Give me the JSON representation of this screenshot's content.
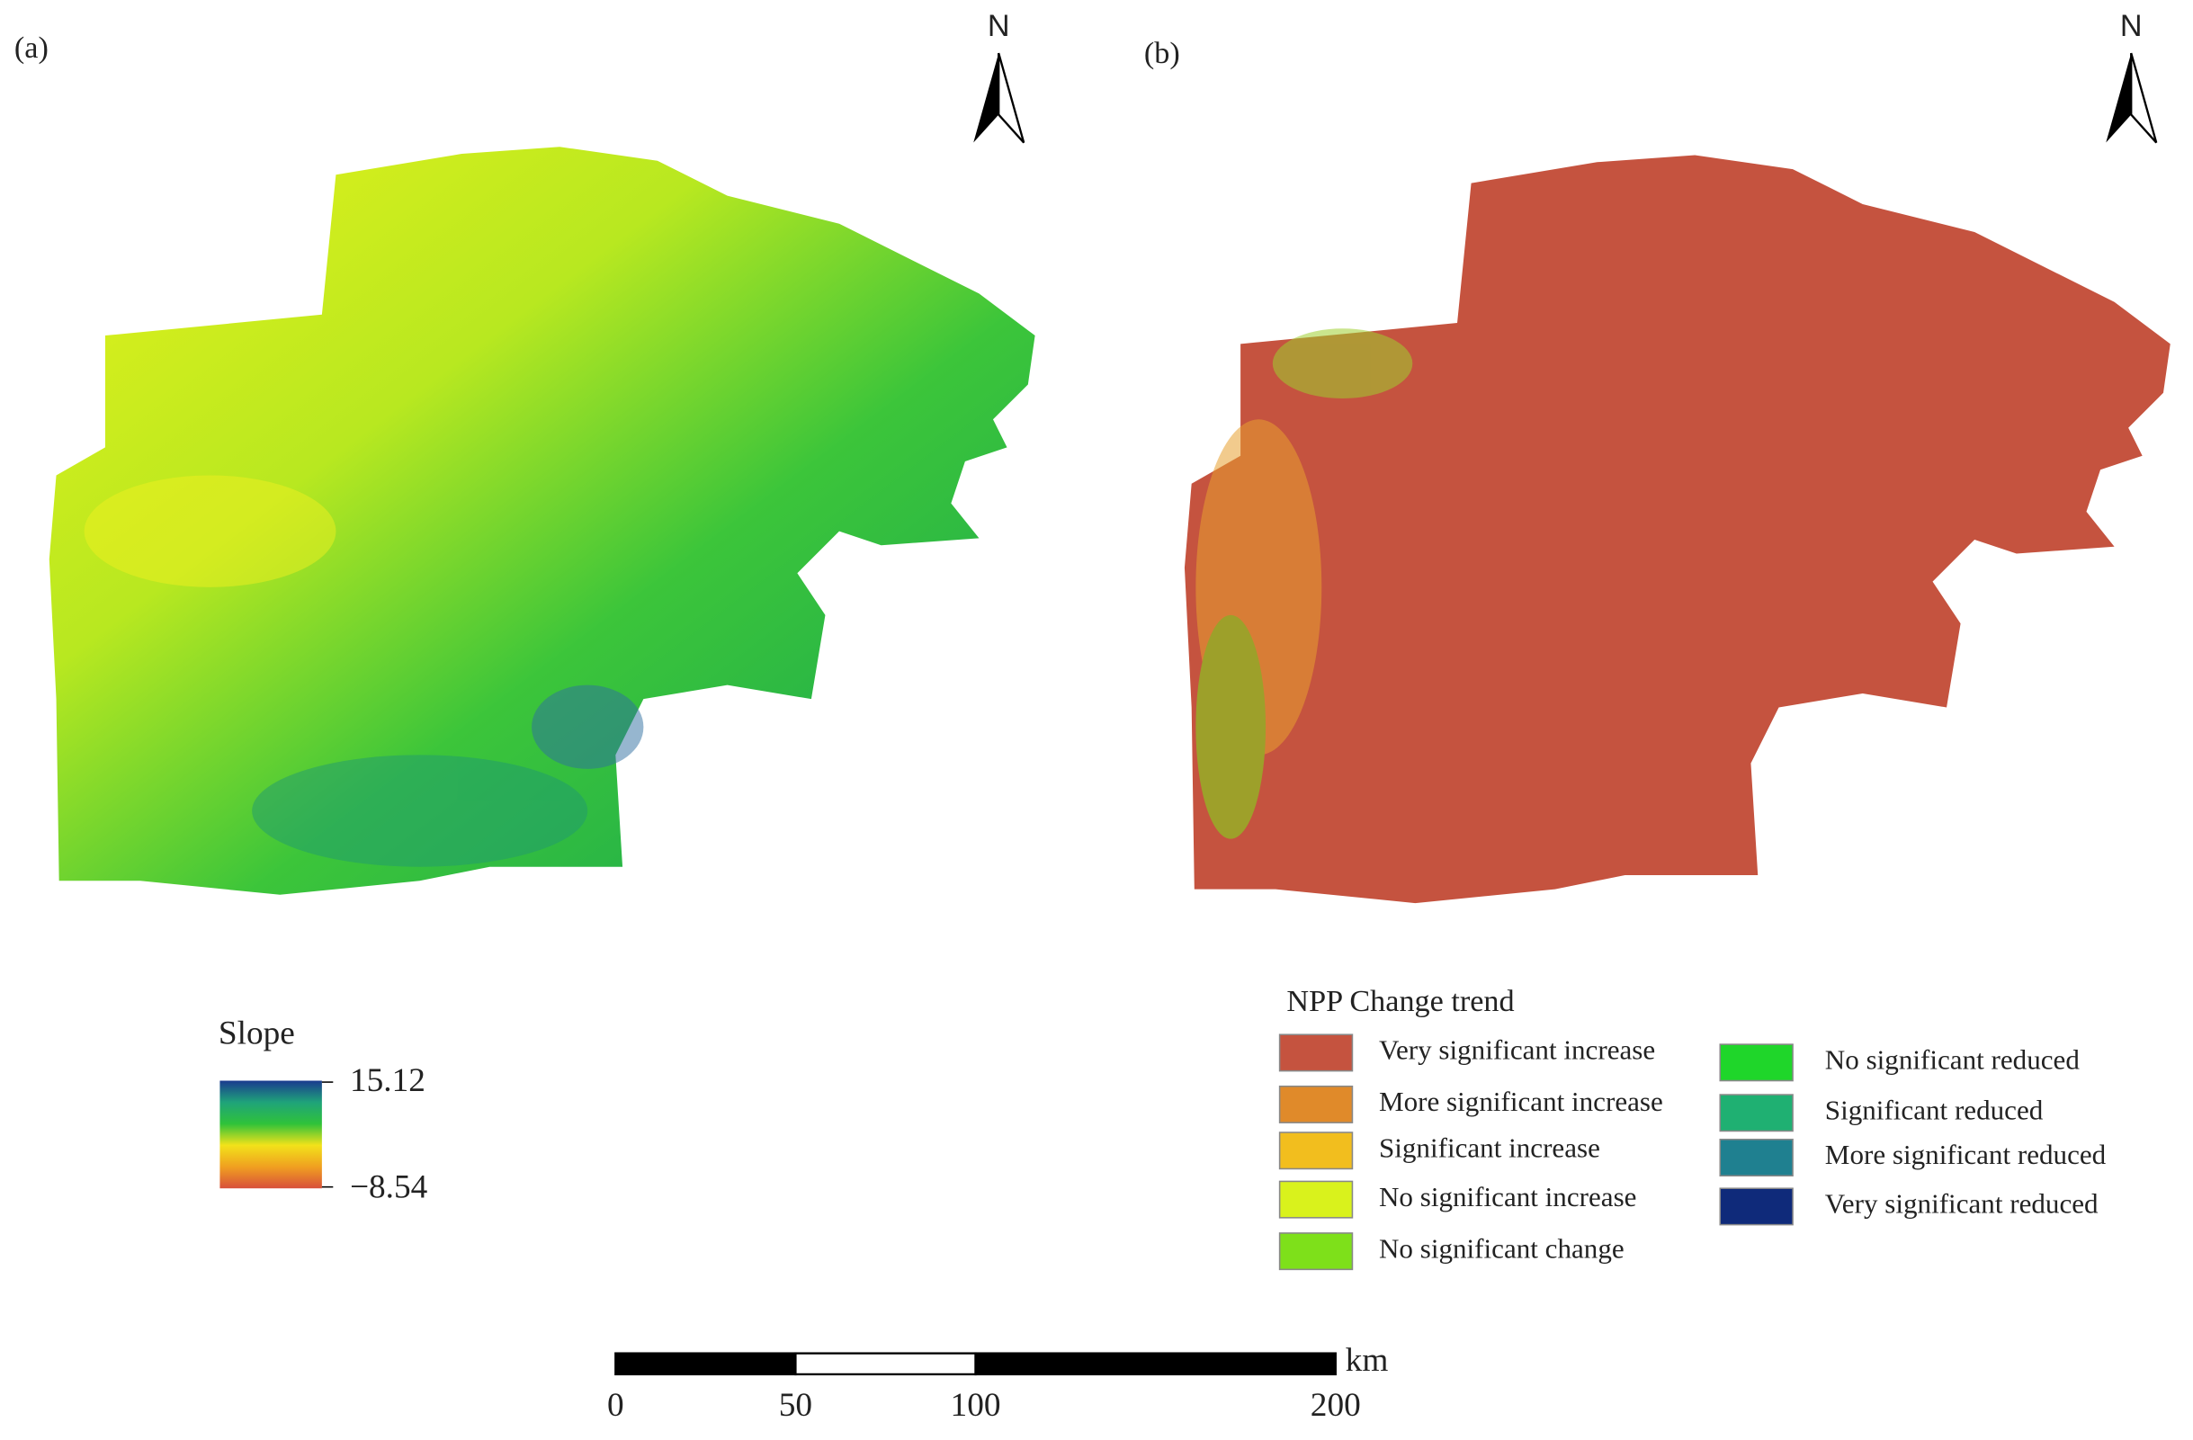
{
  "panels": [
    {
      "label": "(a)",
      "north": "N"
    },
    {
      "label": "(b)",
      "north": "N"
    }
  ],
  "slope_legend": {
    "title": "Slope",
    "max": "15.12",
    "min": "−8.54",
    "colors": [
      "#1a3a8f",
      "#1fa37a",
      "#2fc23a",
      "#f2e21a",
      "#f0a020",
      "#d8503a"
    ]
  },
  "trend_legend": {
    "title": "NPP Change trend",
    "items": [
      {
        "label": "Very significant increase",
        "color": "#c5533f"
      },
      {
        "label": "More significant increase",
        "color": "#e08a2a"
      },
      {
        "label": "Significant increase",
        "color": "#f2be1e"
      },
      {
        "label": "No significant increase",
        "color": "#d9f21c"
      },
      {
        "label": "No significant change",
        "color": "#7ee01a"
      },
      {
        "label": "No significant reduced",
        "color": "#1fd62a"
      },
      {
        "label": "Significant reduced",
        "color": "#1fb072"
      },
      {
        "label": "More significant reduced",
        "color": "#1f8090"
      },
      {
        "label": "Very significant reduced",
        "color": "#0f2a7a"
      }
    ]
  },
  "scale_bar": {
    "ticks": [
      0,
      50,
      100,
      200
    ],
    "unit": "km"
  }
}
